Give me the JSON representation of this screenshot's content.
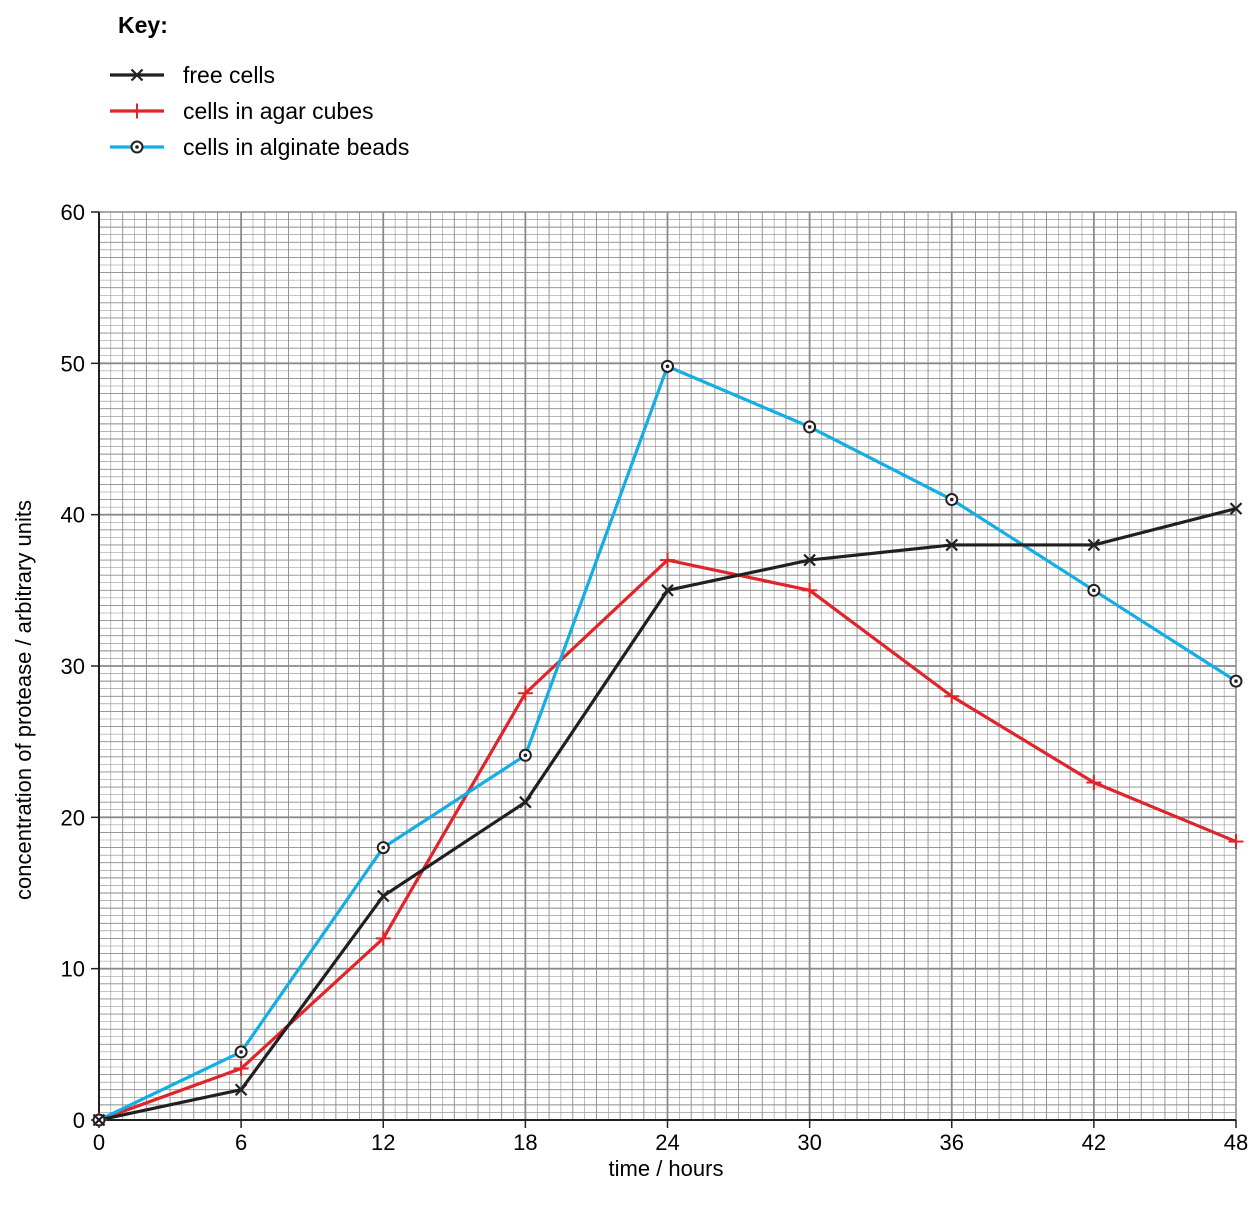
{
  "chart_data": {
    "type": "line",
    "legend_title": "Key:",
    "legend_position": "top-left",
    "xlabel": "time / hours",
    "ylabel": "concentration of protease / arbitrary units",
    "xlim": [
      0,
      48
    ],
    "ylim": [
      0,
      60
    ],
    "x_ticks": [
      0,
      6,
      12,
      18,
      24,
      30,
      36,
      42,
      48
    ],
    "y_ticks": [
      0,
      10,
      20,
      30,
      40,
      50,
      60
    ],
    "grid": true,
    "x": [
      0,
      6,
      12,
      18,
      24,
      30,
      36,
      42,
      48
    ],
    "series": [
      {
        "name": "free cells",
        "marker": "x",
        "color": "#231f20",
        "values": [
          0,
          2,
          14.8,
          21,
          35,
          37,
          38,
          38,
          40.4
        ]
      },
      {
        "name": "cells in agar cubes",
        "marker": "+",
        "color": "#e0242a",
        "values": [
          0,
          3.4,
          12,
          28.2,
          37,
          35,
          28,
          22.3,
          18.4
        ]
      },
      {
        "name": "cells in alginate beads",
        "marker": "circle-dot",
        "color": "#12aee5",
        "values": [
          0,
          4.5,
          18,
          24.1,
          49.8,
          45.8,
          41,
          35,
          29
        ]
      }
    ],
    "colors": {
      "grid": "#8a8a8a",
      "axis": "#231f20"
    }
  }
}
